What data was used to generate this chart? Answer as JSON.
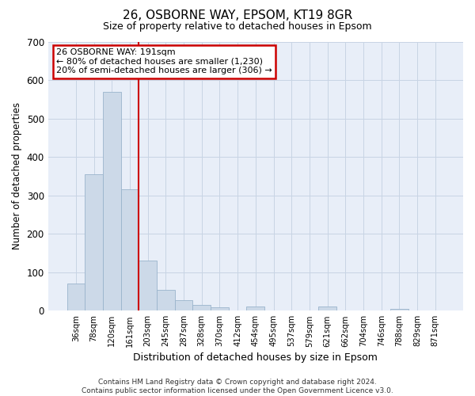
{
  "title": "26, OSBORNE WAY, EPSOM, KT19 8GR",
  "subtitle": "Size of property relative to detached houses in Epsom",
  "xlabel": "Distribution of detached houses by size in Epsom",
  "ylabel": "Number of detached properties",
  "categories": [
    "36sqm",
    "78sqm",
    "120sqm",
    "161sqm",
    "203sqm",
    "245sqm",
    "287sqm",
    "328sqm",
    "370sqm",
    "412sqm",
    "454sqm",
    "495sqm",
    "537sqm",
    "579sqm",
    "621sqm",
    "662sqm",
    "704sqm",
    "746sqm",
    "788sqm",
    "829sqm",
    "871sqm"
  ],
  "values": [
    70,
    355,
    570,
    315,
    130,
    55,
    27,
    15,
    8,
    0,
    10,
    0,
    0,
    0,
    10,
    0,
    0,
    0,
    5,
    0,
    0
  ],
  "bar_color": "#ccd9e8",
  "bar_edge_color": "#9ab4cc",
  "grid_color": "#c8d4e4",
  "background_color": "#e8eef8",
  "red_line_index": 4,
  "annotation_text": "26 OSBORNE WAY: 191sqm\n← 80% of detached houses are smaller (1,230)\n20% of semi-detached houses are larger (306) →",
  "annotation_box_color": "#ffffff",
  "annotation_border_color": "#cc0000",
  "footer": "Contains HM Land Registry data © Crown copyright and database right 2024.\nContains public sector information licensed under the Open Government Licence v3.0.",
  "ylim": [
    0,
    700
  ],
  "yticks": [
    0,
    100,
    200,
    300,
    400,
    500,
    600,
    700
  ],
  "title_fontsize": 11,
  "subtitle_fontsize": 9,
  "ylabel_fontsize": 8.5,
  "xlabel_fontsize": 9
}
